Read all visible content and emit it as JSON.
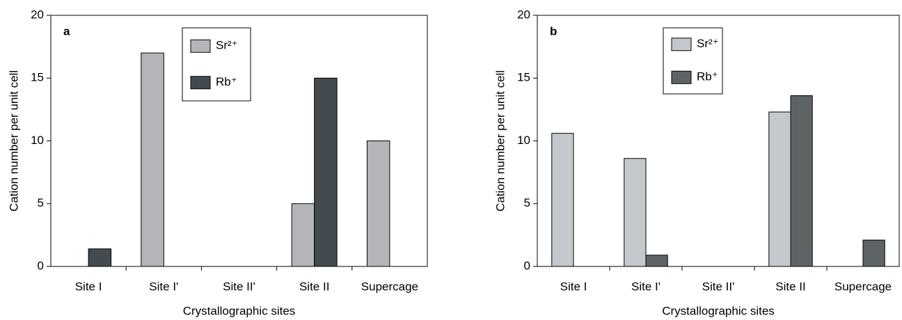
{
  "chart_data": [
    {
      "type": "bar",
      "panel_label": "a",
      "x_label": "Crystallographic sites",
      "y_label": "Cation number per unit cell",
      "categories": [
        "Site I",
        "Site I'",
        "Site II'",
        "Site II",
        "Supercage"
      ],
      "series": [
        {
          "name": "Sr²⁺",
          "color": "#b3b5b8",
          "values": [
            0,
            17,
            0,
            5,
            10
          ]
        },
        {
          "name": "Rb⁺",
          "color": "#434a50",
          "values": [
            1.4,
            0,
            0,
            15,
            0
          ]
        }
      ],
      "ylim": [
        0,
        20
      ],
      "yticks": [
        0,
        5,
        10,
        15,
        20
      ]
    },
    {
      "type": "bar",
      "panel_label": "b",
      "x_label": "Crystallographic sites",
      "y_label": "Cation number per unit cell",
      "categories": [
        "Site I",
        "Site I'",
        "Site II'",
        "Site II",
        "Supercage"
      ],
      "series": [
        {
          "name": "Sr²⁺",
          "color": "#c4c7cc",
          "values": [
            10.6,
            8.6,
            0,
            12.3,
            0
          ]
        },
        {
          "name": "Rb⁺",
          "color": "#5e6366",
          "values": [
            0,
            0.9,
            0,
            13.6,
            2.1
          ]
        }
      ],
      "ylim": [
        0,
        20
      ],
      "yticks": [
        0,
        5,
        10,
        15,
        20
      ]
    }
  ]
}
